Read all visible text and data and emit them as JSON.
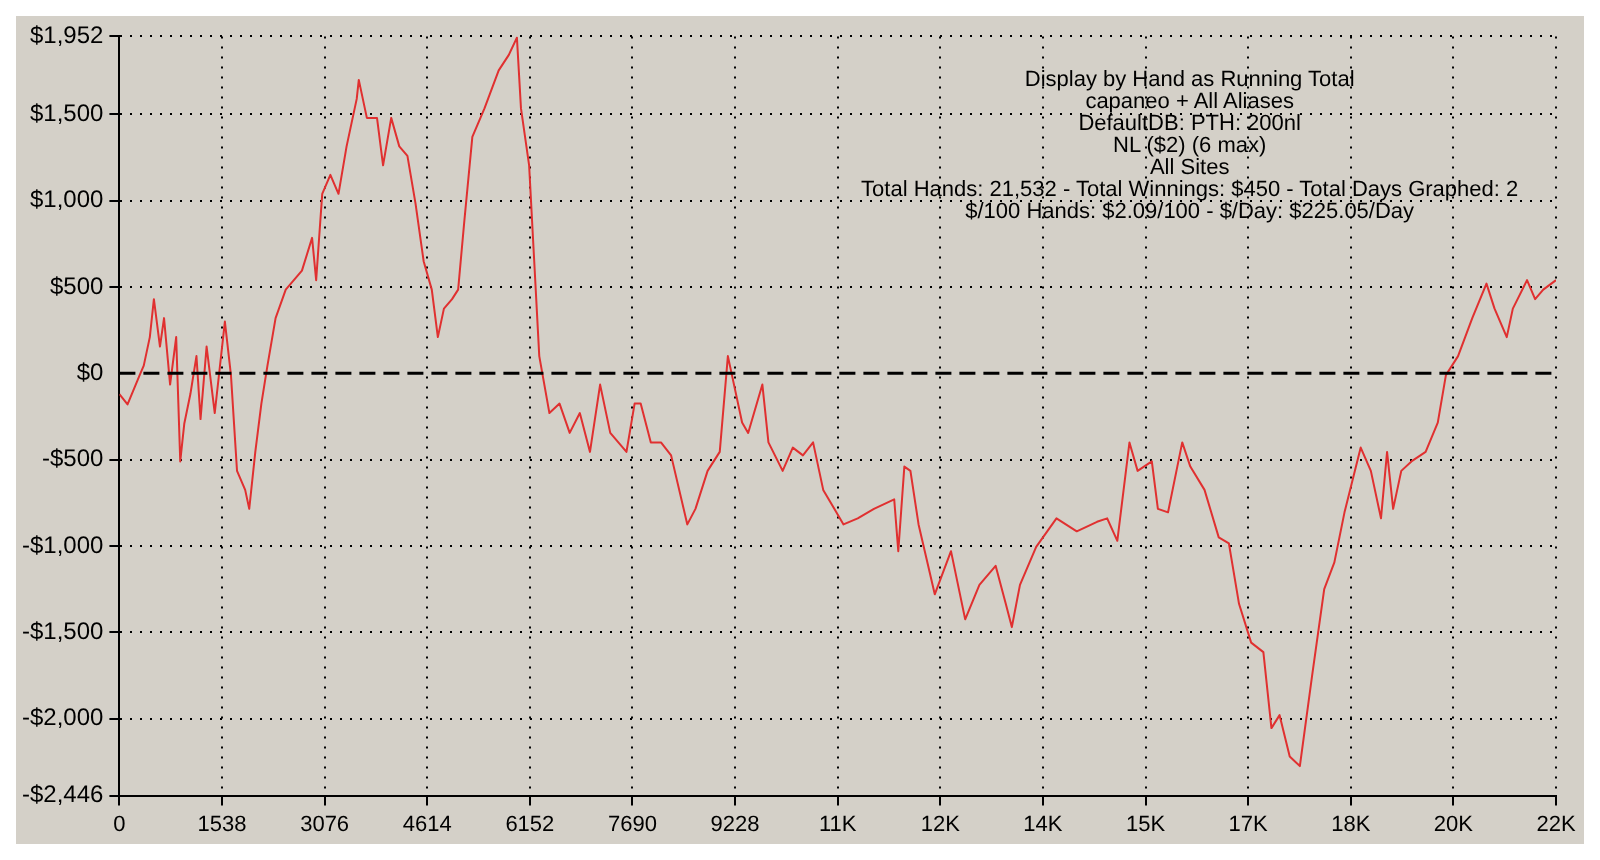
{
  "chart_data": {
    "type": "line",
    "annotations": [
      "Display by Hand as Running Total",
      "capaneo + All Aliases",
      "DefaultDB: PTH: 200nl",
      "NL ($2) (6 max)",
      "All Sites",
      "Total Hands: 21,532 - Total Winnings: $450 - Total Days Graphed: 2",
      "$/100 Hands: $2.09/100 - $/Day: $225.05/Day"
    ],
    "x": [
      0,
      122,
      304,
      365,
      456,
      517,
      608,
      669,
      760,
      851,
      912,
      973,
      1064,
      1155,
      1216,
      1307,
      1429,
      1581,
      1672,
      1763,
      1885,
      1946,
      2037,
      2128,
      2219,
      2341,
      2493,
      2736,
      2888,
      2949,
      3040,
      3162,
      3284,
      3405,
      3557,
      3588,
      3709,
      3861,
      3952,
      4074,
      4195,
      4317,
      4438,
      4560,
      4682,
      4773,
      4864,
      4986,
      5077,
      5168,
      5290,
      5472,
      5685,
      5837,
      5958,
      6019,
      6141,
      6293,
      6445,
      6597,
      6749,
      6901,
      7053,
      7205,
      7357,
      7600,
      7722,
      7813,
      7965,
      8117,
      8269,
      8512,
      8634,
      8816,
      8998,
      9120,
      9181,
      9333,
      9424,
      9637,
      9728,
      9941,
      10093,
      10245,
      10397,
      10549,
      10853,
      11066,
      11309,
      11613,
      11674,
      11765,
      11856,
      11978,
      12221,
      12464,
      12677,
      12890,
      13133,
      13285,
      13376,
      13498,
      13741,
      14045,
      14349,
      14653,
      14805,
      14957,
      15139,
      15261,
      15474,
      15565,
      15717,
      15930,
      16051,
      16264,
      16477,
      16629,
      16781,
      16963,
      17146,
      17267,
      17389,
      17541,
      17693,
      17875,
      18058,
      18210,
      18362,
      18605,
      18757,
      18909,
      19000,
      19091,
      19213,
      19365,
      19578,
      19760,
      19882,
      20064,
      20277,
      20490,
      20611,
      20794,
      20885,
      21098,
      21219,
      21341,
      21532
    ],
    "series": [
      {
        "color": "#e03030",
        "values": [
          -120,
          -180,
          -10,
          45,
          210,
          430,
          155,
          320,
          -65,
          210,
          -510,
          -290,
          -120,
          100,
          -265,
          155,
          -230,
          300,
          -10,
          -565,
          -675,
          -785,
          -455,
          -175,
          45,
          320,
          485,
          595,
          785,
          540,
          1040,
          1150,
          1040,
          1315,
          1590,
          1700,
          1480,
          1480,
          1205,
          1480,
          1315,
          1260,
          985,
          650,
          485,
          210,
          375,
          430,
          485,
          875,
          1370,
          1535,
          1755,
          1845,
          1945,
          1535,
          1205,
          100,
          -230,
          -175,
          -345,
          -230,
          -455,
          -65,
          -345,
          -455,
          -175,
          -175,
          -400,
          -400,
          -475,
          -875,
          -785,
          -565,
          -455,
          100,
          -10,
          -285,
          -345,
          -65,
          -400,
          -565,
          -430,
          -475,
          -400,
          -675,
          -875,
          -840,
          -785,
          -730,
          -1030,
          -540,
          -565,
          -875,
          -1280,
          -1030,
          -1425,
          -1225,
          -1115,
          -1335,
          -1470,
          -1225,
          -1005,
          -840,
          -915,
          -860,
          -840,
          -970,
          -400,
          -565,
          -510,
          -785,
          -805,
          -400,
          -540,
          -675,
          -950,
          -985,
          -1335,
          -1560,
          -1615,
          -2055,
          -1980,
          -2220,
          -2275,
          -1755,
          -1250,
          -1095,
          -805,
          -430,
          -565,
          -840,
          -455,
          -785,
          -565,
          -510,
          -455,
          -285,
          -10,
          100,
          320,
          520,
          375,
          210,
          375,
          540,
          430,
          485,
          540
        ]
      }
    ],
    "xlim": [
      0,
      21532
    ],
    "xticks": [
      0,
      1538,
      3076,
      4614,
      6152,
      7690,
      9228,
      {
        "value": 10766,
        "label": "11K"
      },
      {
        "value": 12304,
        "label": "12K"
      },
      {
        "value": 13842,
        "label": "14K"
      },
      {
        "value": 15380,
        "label": "15K"
      },
      {
        "value": 16918,
        "label": "17K"
      },
      {
        "value": 18456,
        "label": "18K"
      },
      {
        "value": 19994,
        "label": "20K"
      },
      {
        "value": 21532,
        "label": "22K"
      }
    ],
    "ylim": [
      -2446,
      1952
    ],
    "yticks": [
      {
        "value": -2446,
        "label": "-$2,446"
      },
      {
        "value": -2000,
        "label": "-$2,000"
      },
      {
        "value": -1500,
        "label": "-$1,500"
      },
      {
        "value": -1000,
        "label": "-$1,000"
      },
      {
        "value": -500,
        "label": "-$500"
      },
      {
        "value": 0,
        "label": "$0"
      },
      {
        "value": 500,
        "label": "$500"
      },
      {
        "value": 1000,
        "label": "$1,000"
      },
      {
        "value": 1500,
        "label": "$1,500"
      },
      {
        "value": 1952,
        "label": "$1,952"
      }
    ],
    "grid": true,
    "ref_lines": [
      {
        "axis": "y",
        "value": 0,
        "color": "#000000",
        "line_style": "dashed"
      }
    ]
  }
}
